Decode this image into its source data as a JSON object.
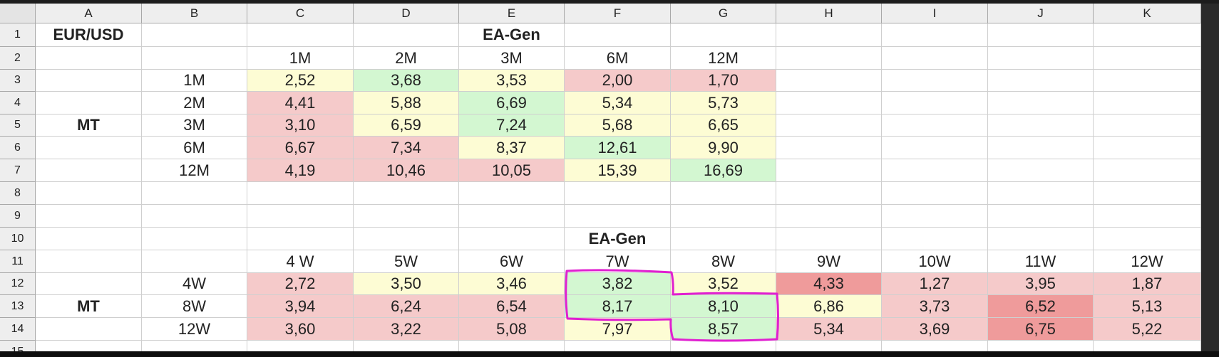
{
  "columns": [
    "A",
    "B",
    "C",
    "D",
    "E",
    "F",
    "G",
    "H",
    "I",
    "J",
    "K"
  ],
  "rows": [
    "1",
    "2",
    "3",
    "4",
    "5",
    "6",
    "7",
    "8",
    "9",
    "10",
    "11",
    "12",
    "13",
    "14",
    "15"
  ],
  "colors": {
    "red": "#f5caca",
    "yellow": "#fdfcd4",
    "green": "#d3f7d1",
    "dark_red": "#ef9b9b",
    "annotation": "#e020d0"
  },
  "cells": [
    {
      "ref": "A1",
      "v": "EUR/USD",
      "bold": true
    },
    {
      "ref": "E1",
      "v": "EA-Gen",
      "bold": true
    },
    {
      "ref": "C2",
      "v": "1M"
    },
    {
      "ref": "D2",
      "v": "2M"
    },
    {
      "ref": "E2",
      "v": "3M"
    },
    {
      "ref": "F2",
      "v": "6M"
    },
    {
      "ref": "G2",
      "v": "12M"
    },
    {
      "ref": "B3",
      "v": "1M"
    },
    {
      "ref": "C3",
      "v": "2,52",
      "fill": "yellow"
    },
    {
      "ref": "D3",
      "v": "3,68",
      "fill": "green"
    },
    {
      "ref": "E3",
      "v": "3,53",
      "fill": "yellow"
    },
    {
      "ref": "F3",
      "v": "2,00",
      "fill": "red"
    },
    {
      "ref": "G3",
      "v": "1,70",
      "fill": "red"
    },
    {
      "ref": "B4",
      "v": "2M"
    },
    {
      "ref": "C4",
      "v": "4,41",
      "fill": "red"
    },
    {
      "ref": "D4",
      "v": "5,88",
      "fill": "yellow"
    },
    {
      "ref": "E4",
      "v": "6,69",
      "fill": "green"
    },
    {
      "ref": "F4",
      "v": "5,34",
      "fill": "yellow"
    },
    {
      "ref": "G4",
      "v": "5,73",
      "fill": "yellow"
    },
    {
      "ref": "A5",
      "v": "MT",
      "bold": true
    },
    {
      "ref": "B5",
      "v": "3M"
    },
    {
      "ref": "C5",
      "v": "3,10",
      "fill": "red"
    },
    {
      "ref": "D5",
      "v": "6,59",
      "fill": "yellow"
    },
    {
      "ref": "E5",
      "v": "7,24",
      "fill": "green"
    },
    {
      "ref": "F5",
      "v": "5,68",
      "fill": "yellow"
    },
    {
      "ref": "G5",
      "v": "6,65",
      "fill": "yellow"
    },
    {
      "ref": "B6",
      "v": "6M"
    },
    {
      "ref": "C6",
      "v": "6,67",
      "fill": "red"
    },
    {
      "ref": "D6",
      "v": "7,34",
      "fill": "red"
    },
    {
      "ref": "E6",
      "v": "8,37",
      "fill": "yellow"
    },
    {
      "ref": "F6",
      "v": "12,61",
      "fill": "green"
    },
    {
      "ref": "G6",
      "v": "9,90",
      "fill": "yellow"
    },
    {
      "ref": "B7",
      "v": "12M"
    },
    {
      "ref": "C7",
      "v": "4,19",
      "fill": "red"
    },
    {
      "ref": "D7",
      "v": "10,46",
      "fill": "red"
    },
    {
      "ref": "E7",
      "v": "10,05",
      "fill": "red"
    },
    {
      "ref": "F7",
      "v": "15,39",
      "fill": "yellow"
    },
    {
      "ref": "G7",
      "v": "16,69",
      "fill": "green"
    },
    {
      "ref": "F10",
      "v": "EA-Gen",
      "bold": true
    },
    {
      "ref": "C11",
      "v": "4 W"
    },
    {
      "ref": "D11",
      "v": "5W"
    },
    {
      "ref": "E11",
      "v": "6W"
    },
    {
      "ref": "F11",
      "v": "7W"
    },
    {
      "ref": "G11",
      "v": "8W"
    },
    {
      "ref": "H11",
      "v": "9W"
    },
    {
      "ref": "I11",
      "v": "10W"
    },
    {
      "ref": "J11",
      "v": "11W"
    },
    {
      "ref": "K11",
      "v": "12W"
    },
    {
      "ref": "B12",
      "v": "4W"
    },
    {
      "ref": "C12",
      "v": "2,72",
      "fill": "red"
    },
    {
      "ref": "D12",
      "v": "3,50",
      "fill": "yellow"
    },
    {
      "ref": "E12",
      "v": "3,46",
      "fill": "yellow"
    },
    {
      "ref": "F12",
      "v": "3,82",
      "fill": "green"
    },
    {
      "ref": "G12",
      "v": "3,52",
      "fill": "yellow"
    },
    {
      "ref": "H12",
      "v": "4,33",
      "fill": "dark_red"
    },
    {
      "ref": "I12",
      "v": "1,27",
      "fill": "red"
    },
    {
      "ref": "J12",
      "v": "3,95",
      "fill": "red"
    },
    {
      "ref": "K12",
      "v": "1,87",
      "fill": "red"
    },
    {
      "ref": "A13",
      "v": "MT",
      "bold": true
    },
    {
      "ref": "B13",
      "v": "8W"
    },
    {
      "ref": "C13",
      "v": "3,94",
      "fill": "red"
    },
    {
      "ref": "D13",
      "v": "6,24",
      "fill": "red"
    },
    {
      "ref": "E13",
      "v": "6,54",
      "fill": "red"
    },
    {
      "ref": "F13",
      "v": "8,17",
      "fill": "green"
    },
    {
      "ref": "G13",
      "v": "8,10",
      "fill": "green"
    },
    {
      "ref": "H13",
      "v": "6,86",
      "fill": "yellow"
    },
    {
      "ref": "I13",
      "v": "3,73",
      "fill": "red"
    },
    {
      "ref": "J13",
      "v": "6,52",
      "fill": "dark_red"
    },
    {
      "ref": "K13",
      "v": "5,13",
      "fill": "red"
    },
    {
      "ref": "B14",
      "v": "12W"
    },
    {
      "ref": "C14",
      "v": "3,60",
      "fill": "red"
    },
    {
      "ref": "D14",
      "v": "3,22",
      "fill": "red"
    },
    {
      "ref": "E14",
      "v": "5,08",
      "fill": "red"
    },
    {
      "ref": "F14",
      "v": "7,97",
      "fill": "yellow"
    },
    {
      "ref": "G14",
      "v": "8,57",
      "fill": "green"
    },
    {
      "ref": "H14",
      "v": "5,34",
      "fill": "red"
    },
    {
      "ref": "I14",
      "v": "3,69",
      "fill": "red"
    },
    {
      "ref": "J14",
      "v": "6,75",
      "fill": "dark_red"
    },
    {
      "ref": "K14",
      "v": "5,22",
      "fill": "red"
    }
  ],
  "annotation": {
    "type": "freehand-outline",
    "shape": "step",
    "covers": [
      "F12",
      "F13",
      "G13",
      "G14"
    ]
  }
}
